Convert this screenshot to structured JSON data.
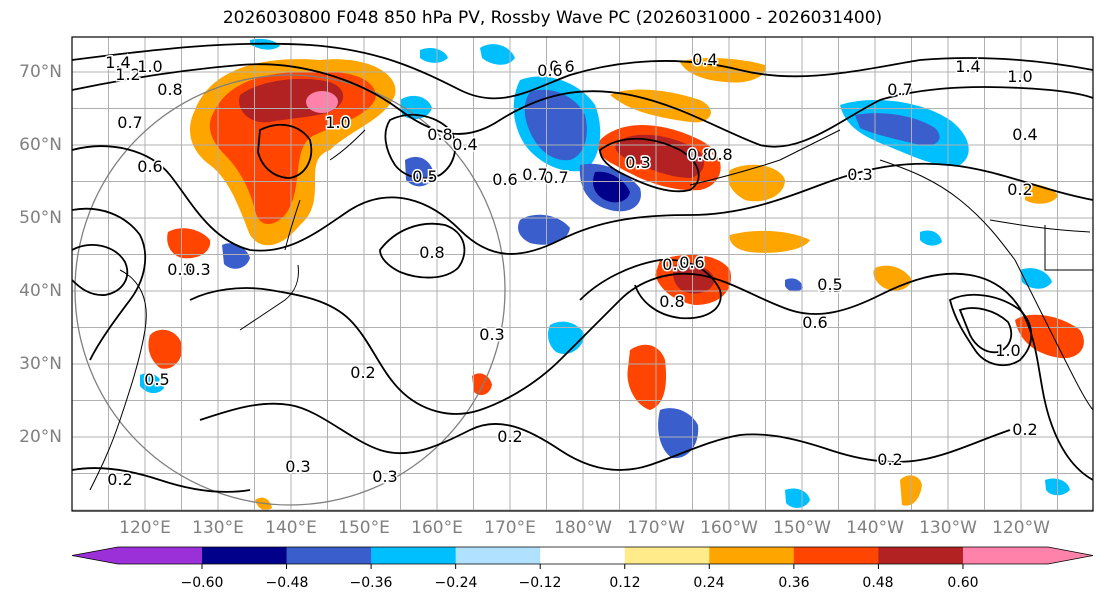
{
  "title": "2026030800 F048 850 hPa PV, Rossby Wave PC (2026031000 - 2026031400)",
  "latitude_labels": [
    "70°N",
    "60°N",
    "50°N",
    "40°N",
    "30°N",
    "20°N"
  ],
  "longitude_labels": [
    "120°E",
    "130°E",
    "140°E",
    "150°E",
    "160°E",
    "170°E",
    "180°W",
    "170°W",
    "160°W",
    "150°W",
    "140°W",
    "130°W",
    "120°W"
  ],
  "colorbar": {
    "ticks": [
      "−0.60",
      "−0.48",
      "−0.36",
      "−0.24",
      "−0.12",
      "0.12",
      "0.24",
      "0.36",
      "0.48",
      "0.60"
    ],
    "colors": [
      "#9b30d9",
      "#00008b",
      "#3a5fcd",
      "#00bfff",
      "#b0e2ff",
      "#ffffff",
      "#ffeb8a",
      "#ffa500",
      "#ff4500",
      "#b22222",
      "#ff82ab"
    ]
  },
  "contour_labels": [
    "1.4",
    "1.2",
    "1.0",
    "0.8",
    "0.7",
    "0.6",
    "0.6",
    "0.4",
    "1.0",
    "0.8",
    "0.6",
    "0.7",
    "0.8",
    "0.3",
    "0.5",
    "0.4",
    "0.2",
    "0.2",
    "0.3",
    "0.3",
    "0.2",
    "0.6",
    "0.8",
    "0.5",
    "0.6",
    "0.2",
    "0.3",
    "0.4",
    "1.0",
    "0.2",
    "1.4",
    "1.0",
    "0.7",
    "0.3",
    "0.5",
    "0.8",
    "0.7",
    "0.5",
    "0.3",
    "0.2",
    "0.6",
    "0.6",
    "0.8",
    "0.3"
  ]
}
